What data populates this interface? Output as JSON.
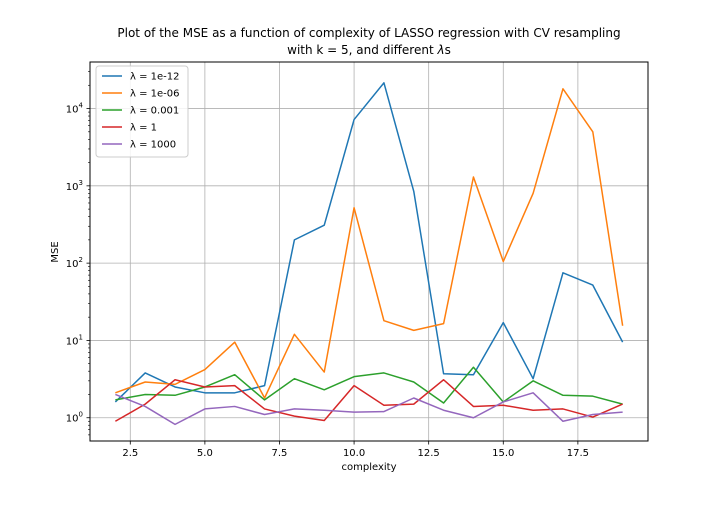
{
  "chart_data": {
    "type": "line",
    "title_line1": "Plot of the MSE as a function of complexity of LASSO regression with CV resampling",
    "title_line2_prefix": "with k = 5, and different ",
    "title_line2_symbol": "λ",
    "title_line2_suffix": "s",
    "xlabel": "complexity",
    "ylabel": "MSE",
    "xscale": "linear",
    "yscale": "log",
    "xlim": [
      1.15,
      19.85
    ],
    "ylim": [
      0.5,
      40000
    ],
    "grid": true,
    "legend_position": "top-left",
    "x_ticks": [
      2.5,
      5.0,
      7.5,
      10.0,
      12.5,
      15.0,
      17.5
    ],
    "x_tick_labels": [
      "2.5",
      "5.0",
      "7.5",
      "10.0",
      "12.5",
      "15.0",
      "17.5"
    ],
    "y_ticks": [
      1,
      10,
      100,
      1000,
      10000
    ],
    "y_tick_base": [
      "10",
      "10",
      "10",
      "10",
      "10"
    ],
    "y_tick_exp": [
      "0",
      "1",
      "2",
      "3",
      "4"
    ],
    "x": [
      2,
      3,
      4,
      5,
      6,
      7,
      8,
      9,
      10,
      11,
      12,
      13,
      14,
      15,
      16,
      17,
      18,
      19
    ],
    "series": [
      {
        "name": "λ = 1e-12",
        "color": "#1f77b4",
        "values": [
          1.6,
          3.8,
          2.5,
          2.1,
          2.1,
          2.6,
          200,
          310,
          7200,
          21500,
          850,
          3.7,
          3.6,
          17,
          3.2,
          75,
          52,
          9.5
        ]
      },
      {
        "name": "λ = 1e-06",
        "color": "#ff7f0e",
        "values": [
          2.1,
          2.9,
          2.7,
          4.2,
          9.5,
          1.8,
          12,
          3.9,
          520,
          18,
          13.5,
          16.5,
          1300,
          105,
          800,
          18000,
          5000,
          15.5
        ]
      },
      {
        "name": "λ = 0.001",
        "color": "#2ca02c",
        "values": [
          1.7,
          2.0,
          1.95,
          2.5,
          3.6,
          1.7,
          3.2,
          2.3,
          3.4,
          3.8,
          2.9,
          1.55,
          4.5,
          1.6,
          3.0,
          1.95,
          1.9,
          1.5
        ]
      },
      {
        "name": "λ = 1",
        "color": "#d62728",
        "values": [
          0.9,
          1.5,
          3.1,
          2.5,
          2.6,
          1.3,
          1.05,
          0.92,
          2.6,
          1.45,
          1.5,
          3.1,
          1.4,
          1.45,
          1.25,
          1.3,
          1.02,
          1.5
        ]
      },
      {
        "name": "λ = 1000",
        "color": "#9467bd",
        "values": [
          2.0,
          1.4,
          0.82,
          1.3,
          1.4,
          1.1,
          1.3,
          1.25,
          1.18,
          1.2,
          1.8,
          1.25,
          1.0,
          1.6,
          2.1,
          0.9,
          1.1,
          1.18
        ]
      }
    ]
  }
}
